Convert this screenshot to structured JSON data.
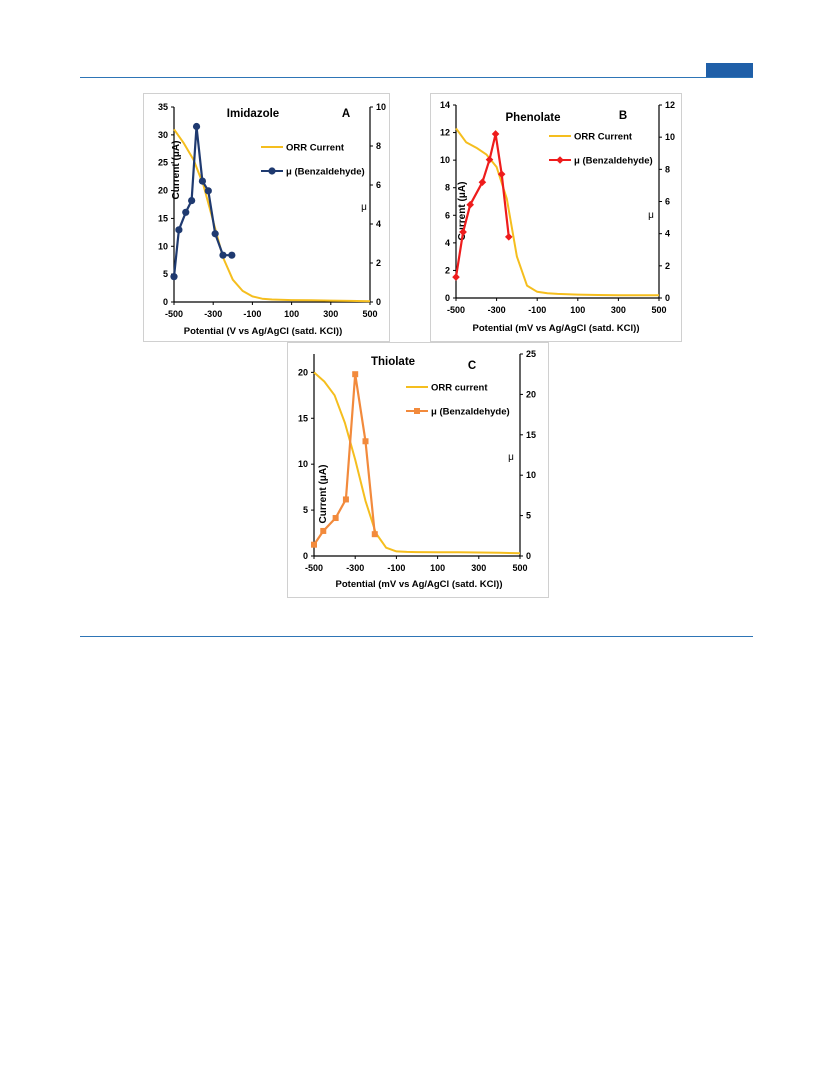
{
  "colors": {
    "rule": "#2e75b6",
    "orr": "#f5be1e",
    "seriesA": "#1f3a70",
    "seriesB": "#ee1c1c",
    "seriesC": "#f28a3c"
  },
  "chart_data": [
    {
      "type": "line",
      "title": "Imidazole",
      "panel_label": "A",
      "xlabel": "Potential  (V vs Ag/AgCl (satd. KCl))",
      "ylabel": "Current (μA)",
      "y2label": "μ",
      "xlim": [
        -500,
        500
      ],
      "xticks": [
        "-500",
        "-300",
        "-100",
        "100",
        "300",
        "500"
      ],
      "ylim": [
        0,
        35
      ],
      "yticks": [
        "0",
        "5",
        "10",
        "15",
        "20",
        "25",
        "30",
        "35"
      ],
      "y2lim": [
        0,
        10
      ],
      "y2ticks": [
        "0",
        "2",
        "4",
        "6",
        "8",
        "10"
      ],
      "legend": "top-right",
      "series": [
        {
          "name": "ORR Current",
          "axis": "left",
          "marker": "none",
          "x": [
            -500,
            -450,
            -400,
            -350,
            -300,
            -250,
            -200,
            -150,
            -100,
            -50,
            0,
            100,
            200,
            300,
            400,
            500
          ],
          "y": [
            31,
            28.5,
            25.5,
            21,
            14.5,
            8,
            4,
            2,
            1,
            0.6,
            0.45,
            0.35,
            0.3,
            0.25,
            0.2,
            0.15
          ]
        },
        {
          "name": "μ (Benzaldehyde)",
          "axis": "right",
          "marker": "circle",
          "x": [
            -500,
            -475,
            -440,
            -410,
            -385,
            -355,
            -325,
            -290,
            -250,
            -205
          ],
          "y": [
            1.3,
            3.7,
            4.6,
            5.2,
            9.0,
            6.2,
            5.7,
            3.5,
            2.4,
            2.4
          ]
        }
      ]
    },
    {
      "type": "line",
      "title": "Phenolate",
      "panel_label": "B",
      "xlabel": "Potential  (mV vs Ag/AgCl (satd. KCl))",
      "ylabel": "Current (μA)",
      "y2label": "μ",
      "xlim": [
        -500,
        500
      ],
      "xticks": [
        "-500",
        "-300",
        "-100",
        "100",
        "300",
        "500"
      ],
      "ylim": [
        0,
        14
      ],
      "yticks": [
        "0",
        "2",
        "4",
        "6",
        "8",
        "10",
        "12",
        "14"
      ],
      "y2lim": [
        0,
        12
      ],
      "y2ticks": [
        "0",
        "2",
        "4",
        "6",
        "8",
        "10",
        "12"
      ],
      "legend": "top-right",
      "series": [
        {
          "name": "ORR Current",
          "axis": "left",
          "marker": "none",
          "x": [
            -500,
            -450,
            -400,
            -350,
            -300,
            -250,
            -200,
            -150,
            -100,
            -50,
            0,
            100,
            200,
            300,
            400,
            500
          ],
          "y": [
            12.3,
            11.3,
            10.9,
            10.4,
            9.5,
            7.2,
            3.0,
            0.9,
            0.45,
            0.35,
            0.3,
            0.25,
            0.22,
            0.2,
            0.2,
            0.2
          ]
        },
        {
          "name": "μ (Benzaldehyde)",
          "axis": "right",
          "marker": "diamond",
          "x": [
            -500,
            -465,
            -430,
            -370,
            -335,
            -305,
            -275,
            -240
          ],
          "y": [
            1.3,
            4.1,
            5.8,
            7.2,
            8.6,
            10.2,
            7.7,
            3.8
          ]
        }
      ]
    },
    {
      "type": "line",
      "title": "Thiolate",
      "panel_label": "C",
      "xlabel": "Potential  (mV vs Ag/AgCl (satd. KCl))",
      "ylabel": "Current (μA)",
      "y2label": "μ",
      "xlim": [
        -500,
        500
      ],
      "xticks": [
        "-500",
        "-300",
        "-100",
        "100",
        "300",
        "500"
      ],
      "ylim": [
        0,
        22
      ],
      "yticks": [
        "0",
        "5",
        "10",
        "15",
        "20"
      ],
      "y2lim": [
        0,
        25
      ],
      "y2ticks": [
        "0",
        "5",
        "10",
        "15",
        "20",
        "25"
      ],
      "legend": "top-right",
      "series": [
        {
          "name": "ORR current",
          "axis": "left",
          "marker": "none",
          "x": [
            -500,
            -450,
            -400,
            -350,
            -300,
            -250,
            -200,
            -150,
            -100,
            -50,
            0,
            100,
            200,
            300,
            400,
            500
          ],
          "y": [
            20,
            19,
            17.5,
            14.5,
            10.5,
            6,
            2.5,
            0.9,
            0.5,
            0.45,
            0.42,
            0.4,
            0.4,
            0.38,
            0.35,
            0.3
          ]
        },
        {
          "name": "μ (Benzaldehyde)",
          "axis": "right",
          "marker": "square",
          "x": [
            -500,
            -455,
            -395,
            -345,
            -300,
            -250,
            -205
          ],
          "y": [
            1.4,
            3.1,
            4.7,
            7.0,
            22.5,
            14.2,
            2.7
          ]
        }
      ]
    }
  ]
}
